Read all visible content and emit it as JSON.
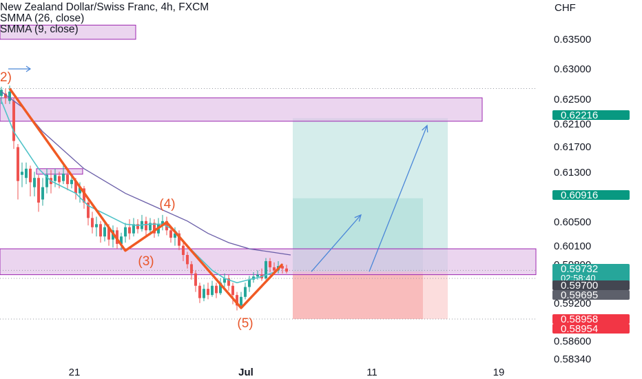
{
  "header": {
    "title": "New Zealand Dollar/Swiss Franc, 4h, FXCM",
    "indicators": [
      "SMMA (26, close)",
      "SMMA (9, close)"
    ],
    "currency": "CHF"
  },
  "colors": {
    "background": "#ffffff",
    "zone_fill": "#e1bee7",
    "zone_border": "#9c27b0",
    "wave_line": "#f05a24",
    "wave_label": "#e8562a",
    "smma26": "#6a5ea8",
    "smma9": "#4fc3c8",
    "candle_up": "#26a69a",
    "candle_down": "#ef5350",
    "projection_arrow": "#4a86d8",
    "target_zone": "#b2dfdb",
    "stop_zone": "#f8b4b4",
    "axis_text": "#131722"
  },
  "chart_data": {
    "type": "candlestick",
    "symbol": "NZDCHF",
    "timeframe": "4h",
    "y_axis_ticks": [
      "0.63500",
      "0.63000",
      "0.62500",
      "0.62100",
      "0.61700",
      "0.61300",
      "0.60500",
      "0.60100",
      "0.59800",
      "0.59200",
      "0.58600",
      "0.58340"
    ],
    "x_axis_ticks": [
      "21",
      "Jul",
      "11",
      "19"
    ],
    "price_labels": [
      {
        "text": "0.62216",
        "color": "#089981",
        "role": "target-1"
      },
      {
        "text": "0.60916",
        "color": "#089981",
        "role": "target-2"
      },
      {
        "text": "0.59732",
        "subtext": "02:58:40",
        "color": "#26a69a",
        "role": "last-price"
      },
      {
        "text": "0.59700",
        "color": "#434651",
        "role": "entry"
      },
      {
        "text": "0.59695",
        "color": "#5d606b",
        "role": "entry-2"
      },
      {
        "text": "0.58958",
        "color": "#f23645",
        "role": "stop-1"
      },
      {
        "text": "0.58954",
        "color": "#f23645",
        "role": "stop-2"
      }
    ],
    "wave_labels": [
      "2)",
      "(3)",
      "(4)",
      "(5)"
    ],
    "zones": [
      {
        "from": 0.635,
        "to": 0.6373
      },
      {
        "from": 0.6217,
        "to": 0.6255
      },
      {
        "from": 0.5968,
        "to": 0.601
      },
      {
        "from": 0.6132,
        "to": 0.614
      }
    ],
    "wave_points": [
      {
        "t": 2,
        "p": 0.627
      },
      {
        "t": 30,
        "p": 0.6007
      },
      {
        "t": 40,
        "p": 0.6053
      },
      {
        "t": 58,
        "p": 0.5914
      },
      {
        "t": 68,
        "p": 0.5985
      }
    ],
    "smma26": [
      [
        0,
        0.6265
      ],
      [
        5,
        0.624
      ],
      [
        10,
        0.62
      ],
      [
        15,
        0.617
      ],
      [
        20,
        0.614
      ],
      [
        25,
        0.612
      ],
      [
        30,
        0.61
      ],
      [
        35,
        0.6085
      ],
      [
        40,
        0.607
      ],
      [
        45,
        0.6055
      ],
      [
        50,
        0.6035
      ],
      [
        55,
        0.602
      ],
      [
        60,
        0.601
      ],
      [
        65,
        0.6005
      ],
      [
        70,
        0.6
      ]
    ],
    "smma9": [
      [
        0,
        0.625
      ],
      [
        3,
        0.62
      ],
      [
        6,
        0.617
      ],
      [
        9,
        0.614
      ],
      [
        12,
        0.612
      ],
      [
        15,
        0.611
      ],
      [
        18,
        0.61
      ],
      [
        21,
        0.608
      ],
      [
        24,
        0.607
      ],
      [
        27,
        0.606
      ],
      [
        30,
        0.605
      ],
      [
        33,
        0.6048
      ],
      [
        36,
        0.605
      ],
      [
        39,
        0.605
      ],
      [
        42,
        0.604
      ],
      [
        45,
        0.6015
      ],
      [
        48,
        0.5995
      ],
      [
        51,
        0.5975
      ],
      [
        54,
        0.5962
      ],
      [
        57,
        0.5955
      ],
      [
        60,
        0.596
      ],
      [
        63,
        0.5965
      ],
      [
        66,
        0.5972
      ]
    ],
    "candles": [
      [
        0,
        0.6258,
        0.6268,
        0.6273,
        0.6245
      ],
      [
        1,
        0.6262,
        0.6255,
        0.627,
        0.6245
      ],
      [
        2,
        0.625,
        0.6265,
        0.6275,
        0.6245
      ],
      [
        3,
        0.625,
        0.6185,
        0.6255,
        0.6172
      ],
      [
        4,
        0.6175,
        0.612,
        0.618,
        0.609
      ],
      [
        5,
        0.613,
        0.6135,
        0.615,
        0.611
      ],
      [
        6,
        0.6125,
        0.614,
        0.615,
        0.6115
      ],
      [
        7,
        0.614,
        0.6118,
        0.6145,
        0.6095
      ],
      [
        8,
        0.611,
        0.6125,
        0.6135,
        0.6095
      ],
      [
        9,
        0.6125,
        0.6085,
        0.613,
        0.607
      ],
      [
        10,
        0.609,
        0.611,
        0.6125,
        0.608
      ],
      [
        11,
        0.611,
        0.613,
        0.614,
        0.61
      ],
      [
        12,
        0.6125,
        0.6115,
        0.6138,
        0.61
      ],
      [
        13,
        0.612,
        0.613,
        0.614,
        0.611
      ],
      [
        14,
        0.6128,
        0.6118,
        0.6135,
        0.6108
      ],
      [
        15,
        0.612,
        0.6132,
        0.6145,
        0.6115
      ],
      [
        16,
        0.613,
        0.6115,
        0.614,
        0.6105
      ],
      [
        17,
        0.6115,
        0.6122,
        0.6132,
        0.6108
      ],
      [
        18,
        0.612,
        0.61,
        0.6125,
        0.609
      ],
      [
        19,
        0.61,
        0.611,
        0.6118,
        0.6085
      ],
      [
        20,
        0.6108,
        0.6085,
        0.6112,
        0.6075
      ],
      [
        21,
        0.6085,
        0.606,
        0.609,
        0.6048
      ],
      [
        22,
        0.606,
        0.6045,
        0.607,
        0.6035
      ],
      [
        23,
        0.6045,
        0.605,
        0.6062,
        0.603
      ],
      [
        24,
        0.605,
        0.603,
        0.6055,
        0.602
      ],
      [
        25,
        0.603,
        0.6045,
        0.6052,
        0.6022
      ],
      [
        26,
        0.6045,
        0.6025,
        0.605,
        0.6015
      ],
      [
        27,
        0.6025,
        0.604,
        0.6048,
        0.6012
      ],
      [
        28,
        0.604,
        0.6018,
        0.6045,
        0.601
      ],
      [
        29,
        0.6018,
        0.603,
        0.6036,
        0.6008
      ],
      [
        30,
        0.603,
        0.6045,
        0.6052,
        0.602
      ],
      [
        31,
        0.6045,
        0.6035,
        0.6058,
        0.6025
      ],
      [
        32,
        0.6035,
        0.605,
        0.606,
        0.603
      ],
      [
        33,
        0.605,
        0.6042,
        0.6058,
        0.6035
      ],
      [
        34,
        0.6042,
        0.6055,
        0.6065,
        0.6038
      ],
      [
        35,
        0.6055,
        0.604,
        0.6062,
        0.603
      ],
      [
        36,
        0.604,
        0.6052,
        0.606,
        0.6032
      ],
      [
        37,
        0.6052,
        0.6035,
        0.6058,
        0.6028
      ],
      [
        38,
        0.6035,
        0.605,
        0.606,
        0.603
      ],
      [
        39,
        0.605,
        0.6055,
        0.6065,
        0.604
      ],
      [
        40,
        0.6055,
        0.604,
        0.6062,
        0.6032
      ],
      [
        41,
        0.604,
        0.6028,
        0.6048,
        0.602
      ],
      [
        42,
        0.6028,
        0.6035,
        0.6045,
        0.6015
      ],
      [
        43,
        0.6035,
        0.6015,
        0.604,
        0.6008
      ],
      [
        44,
        0.6015,
        0.6,
        0.602,
        0.599
      ],
      [
        45,
        0.6,
        0.5985,
        0.6005,
        0.5978
      ],
      [
        46,
        0.5985,
        0.597,
        0.599,
        0.596
      ],
      [
        47,
        0.597,
        0.595,
        0.5975,
        0.594
      ],
      [
        48,
        0.595,
        0.593,
        0.5955,
        0.5922
      ],
      [
        49,
        0.593,
        0.5945,
        0.5952,
        0.5925
      ],
      [
        50,
        0.5945,
        0.5935,
        0.5955,
        0.5928
      ],
      [
        51,
        0.5935,
        0.595,
        0.5958,
        0.5932
      ],
      [
        52,
        0.595,
        0.5938,
        0.5955,
        0.593
      ],
      [
        53,
        0.5938,
        0.5955,
        0.5962,
        0.5935
      ],
      [
        54,
        0.5955,
        0.5962,
        0.597,
        0.5948
      ],
      [
        55,
        0.5962,
        0.595,
        0.5968,
        0.5942
      ],
      [
        56,
        0.595,
        0.5935,
        0.5955,
        0.592
      ],
      [
        57,
        0.5935,
        0.5918,
        0.594,
        0.591
      ],
      [
        58,
        0.5918,
        0.5932,
        0.594,
        0.5914
      ],
      [
        59,
        0.5932,
        0.5948,
        0.5955,
        0.5928
      ],
      [
        60,
        0.5948,
        0.596,
        0.5966,
        0.594
      ],
      [
        61,
        0.596,
        0.5965,
        0.5972,
        0.5955
      ],
      [
        62,
        0.5965,
        0.5968,
        0.5975,
        0.596
      ],
      [
        63,
        0.5968,
        0.5962,
        0.5978,
        0.5958
      ],
      [
        64,
        0.5962,
        0.599,
        0.5995,
        0.596
      ],
      [
        65,
        0.599,
        0.598,
        0.5995,
        0.5972
      ],
      [
        66,
        0.598,
        0.5975,
        0.5988,
        0.5968
      ],
      [
        67,
        0.5975,
        0.5982,
        0.599,
        0.597
      ],
      [
        68,
        0.5982,
        0.5978,
        0.5986,
        0.597
      ],
      [
        69,
        0.5978,
        0.5973,
        0.5984,
        0.597
      ]
    ],
    "long_setups": [
      {
        "entry": 0.5973,
        "target": 0.6222,
        "stop": 0.5896,
        "t_start": 70,
        "t_end": 108
      },
      {
        "entry": 0.5973,
        "target": 0.6092,
        "stop": 0.5896,
        "t_start": 70,
        "t_end": 102
      }
    ],
    "projections": [
      {
        "t0": 75,
        "p0": 0.5973,
        "t1": 87,
        "p1": 0.6065
      },
      {
        "t0": 89,
        "p0": 0.5973,
        "t1": 103,
        "p1": 0.621
      }
    ]
  }
}
